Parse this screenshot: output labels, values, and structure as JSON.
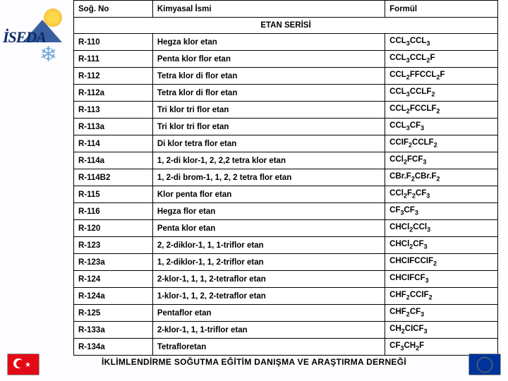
{
  "logo": {
    "text": "İSEDA"
  },
  "headers": {
    "c1": "Soğ. No",
    "c2": "Kimyasal İsmi",
    "c3": "Formül"
  },
  "section": "ETAN SERİSİ",
  "rows": [
    {
      "no": "R-110",
      "name": "Hegza klor etan",
      "formula": "CCL<sub>3</sub>CCL<sub>3</sub>"
    },
    {
      "no": "R-111",
      "name": "Penta klor flor etan",
      "formula": "CCL<sub>3</sub>CCL<sub>2</sub>F"
    },
    {
      "no": "R-112",
      "name": "Tetra klor di flor etan",
      "formula": "CCL<sub>2</sub>FFCCL<sub>2</sub>F"
    },
    {
      "no": "R-112a",
      "name": "Tetra klor di flor etan",
      "formula": "CCL<sub>3</sub>CCLF<sub>2</sub>"
    },
    {
      "no": "R-113",
      "name": "Tri klor tri flor etan",
      "formula": "CCL<sub>2</sub>FCCLF<sub>2</sub>"
    },
    {
      "no": "R-113a",
      "name": "Tri klor tri flor etan",
      "formula": "CCL<sub>3</sub>CF<sub>3</sub>"
    },
    {
      "no": "R-114",
      "name": "Di klor tetra flor etan",
      "formula": "CCIF<sub>2</sub>CCLF<sub>2</sub>"
    },
    {
      "no": "R-114a",
      "name": "1, 2-di klor-1, 2, 2,2 tetra klor etan",
      "formula": "CCl<sub>2</sub>FCF<sub>3</sub>"
    },
    {
      "no": "R-114B2",
      "name": "1, 2-di brom-1, 1, 2, 2 tetra flor etan",
      "formula": "CBr.F<sub>2</sub>CBr.F<sub>2</sub>"
    },
    {
      "no": "R-115",
      "name": "Klor penta flor etan",
      "formula": "CCl<sub>2</sub>F<sub>2</sub>CF<sub>3</sub>"
    },
    {
      "no": "R-116",
      "name": "Hegza flor etan",
      "formula": "CF<sub>3</sub>CF<sub>3</sub>"
    },
    {
      "no": "R-120",
      "name": "Penta klor etan",
      "formula": "CHCl<sub>2</sub>CCl<sub>3</sub>"
    },
    {
      "no": "R-123",
      "name": "2, 2-diklor-1, 1, 1-triflor etan",
      "formula": "CHCl<sub>2</sub>CF<sub>3</sub>"
    },
    {
      "no": "R-123a",
      "name": "1, 2-diklor-1, 1, 2-triflor etan",
      "formula": "CHCIFCCIF<sub>2</sub>"
    },
    {
      "no": "R-124",
      "name": "2-klor-1, 1, 1, 2-tetraflor etan",
      "formula": "CHCIFCF<sub>3</sub>"
    },
    {
      "no": "R-124a",
      "name": "1-klor-1, 1, 2, 2-tetraflor etan",
      "formula": "CHF<sub>2</sub>CCIF<sub>2</sub>"
    },
    {
      "no": "R-125",
      "name": "Pentaflor etan",
      "formula": "CHF<sub>2</sub>CF<sub>3</sub>"
    },
    {
      "no": "R-133a",
      "name": "2-klor-1, 1, 1-triflor etan",
      "formula": "CH<sub>2</sub>CICF<sub>3</sub>"
    },
    {
      "no": "R-134a",
      "name": "Tetrafloretan",
      "formula": "CF<sub>3</sub>CH<sub>2</sub>F"
    }
  ],
  "footer": "İKLİMLENDİRME SOĞUTMA EĞİTİM DANIŞMA VE ARAŞTIRMA DERNEĞİ"
}
